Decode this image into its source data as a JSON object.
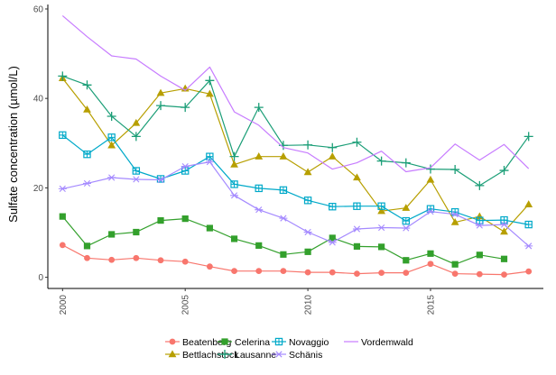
{
  "chart_data": {
    "type": "line",
    "title": "",
    "xlabel": "",
    "ylabel": "Sulfate concentration (µmol/L)",
    "xlim": [
      1999.4,
      2019.6
    ],
    "ylim": [
      -2.5,
      61
    ],
    "x_ticks": [
      2000,
      2005,
      2010,
      2015
    ],
    "x_tick_labels": [
      "2000",
      "2005",
      "2010",
      "2015"
    ],
    "y_ticks": [
      0,
      20,
      40,
      60
    ],
    "y_tick_labels": [
      "0",
      "20",
      "40",
      "60"
    ],
    "grid": false,
    "legend_position": "bottom",
    "x": [
      2000,
      2001,
      2002,
      2003,
      2004,
      2005,
      2006,
      2007,
      2008,
      2009,
      2010,
      2011,
      2012,
      2013,
      2014,
      2015,
      2016,
      2017,
      2018,
      2019
    ],
    "series": [
      {
        "name": "Beatenberg",
        "color": "#F8766D",
        "marker": "circle",
        "values": [
          7.2,
          4.3,
          3.9,
          4.3,
          3.8,
          3.5,
          2.4,
          1.4,
          1.4,
          1.4,
          1.1,
          1.1,
          0.8,
          1.0,
          1.0,
          3.0,
          0.8,
          0.7,
          0.6,
          1.3
        ]
      },
      {
        "name": "Bettlachstock",
        "color": "#B79F00",
        "marker": "triangle",
        "values": [
          44.5,
          37.5,
          29.5,
          34.5,
          41.2,
          42.2,
          41.0,
          25.2,
          27.0,
          27.0,
          23.5,
          27.0,
          22.3,
          14.8,
          15.5,
          21.8,
          12.3,
          13.6,
          10.2,
          16.3
        ]
      },
      {
        "name": "Celerina",
        "color": "#33A02C",
        "marker": "square",
        "values": [
          13.6,
          7.0,
          9.6,
          10.1,
          12.7,
          13.1,
          11.0,
          8.6,
          7.1,
          5.1,
          5.7,
          8.8,
          6.9,
          6.8,
          3.8,
          5.3,
          2.9,
          5.0,
          4.1,
          null
        ]
      },
      {
        "name": "Lausanne",
        "color": "#1B9E77",
        "marker": "plus",
        "values": [
          45.0,
          43.0,
          36.0,
          31.5,
          38.4,
          38.0,
          44.0,
          27.0,
          38.0,
          29.5,
          29.6,
          29.0,
          30.2,
          26.0,
          25.6,
          24.2,
          24.1,
          20.5,
          23.9,
          31.5
        ]
      },
      {
        "name": "Novaggio",
        "color": "#00A9C9",
        "marker": "boxsquare",
        "values": [
          31.8,
          27.5,
          31.3,
          23.8,
          22.0,
          23.8,
          27.0,
          20.8,
          19.9,
          19.5,
          17.2,
          15.8,
          15.9,
          15.9,
          12.6,
          15.3,
          14.6,
          12.7,
          12.8,
          11.8
        ]
      },
      {
        "name": "Schänis",
        "color": "#A58AFF",
        "marker": "asterisk",
        "values": [
          19.8,
          21.0,
          22.3,
          21.9,
          21.8,
          24.8,
          25.8,
          18.3,
          15.1,
          13.2,
          10.1,
          7.8,
          10.8,
          11.1,
          11.0,
          14.7,
          14.1,
          11.6,
          11.8,
          7.0
        ]
      },
      {
        "name": "Vordemwald",
        "color": "#C77CFF",
        "marker": "none",
        "values": [
          58.5,
          53.8,
          49.5,
          48.8,
          45.0,
          41.8,
          47.0,
          37.0,
          34.0,
          29.0,
          27.8,
          24.2,
          25.6,
          28.2,
          23.6,
          24.5,
          29.8,
          26.2,
          29.7,
          24.3
        ]
      }
    ]
  }
}
